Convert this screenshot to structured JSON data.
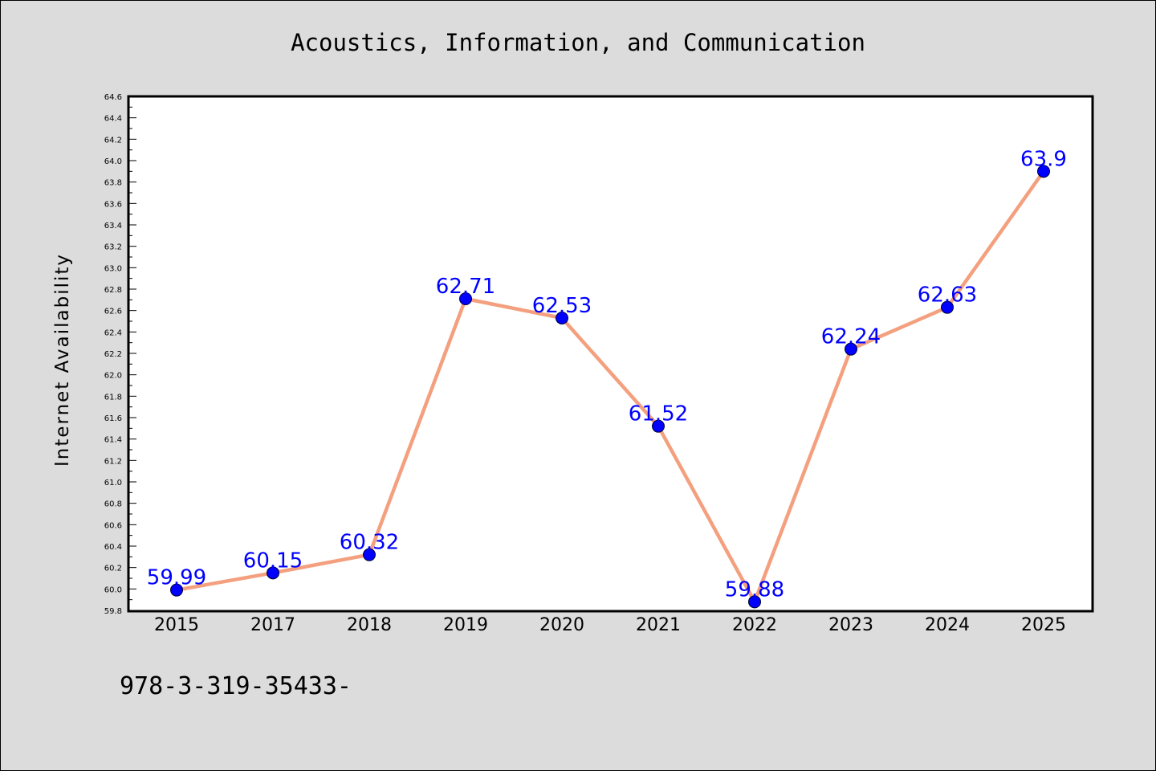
{
  "colors": {
    "background": "#dcdcdc",
    "plot_background": "#ffffff",
    "line": "#f4a07f",
    "marker": "#0000ff",
    "label": "#0000ff",
    "text": "#000000"
  },
  "footer_text": "978-3-319-35433-",
  "chart_data": {
    "type": "line",
    "title": "Acoustics, Information, and Communication",
    "xlabel": "",
    "ylabel": "Internet Availability",
    "categories": [
      "2015",
      "2017",
      "2018",
      "2019",
      "2020",
      "2021",
      "2022",
      "2023",
      "2024",
      "2025"
    ],
    "series": [
      {
        "values": [
          59.99,
          60.15,
          60.32,
          62.71,
          62.53,
          61.52,
          59.88,
          62.24,
          62.63,
          63.9
        ],
        "labels": [
          "59.99",
          "60.15",
          "60.32",
          "62.71",
          "62.53",
          "61.52",
          "59.88",
          "62.24",
          "62.63",
          "63.9"
        ]
      }
    ],
    "ylim": [
      59.8,
      64.6
    ],
    "ytick_step": 0.2,
    "grid": false,
    "legend": "none"
  }
}
